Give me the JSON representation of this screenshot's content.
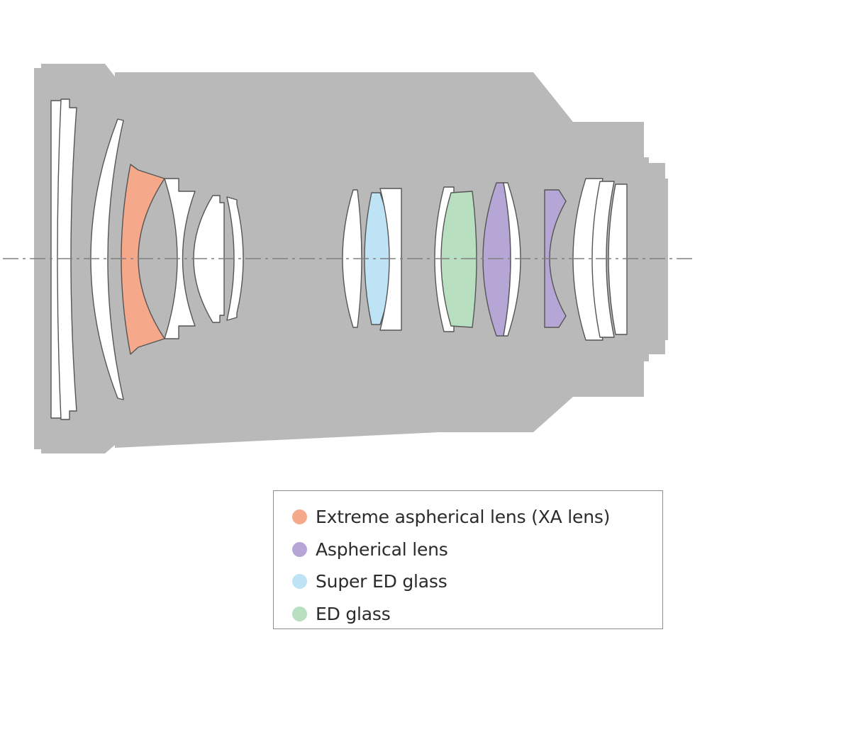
{
  "legend": {
    "items": [
      {
        "key": "xa",
        "label": "Extreme aspherical lens (XA lens)",
        "color": "#f5a88a"
      },
      {
        "key": "aspherical",
        "label": "Aspherical lens",
        "color": "#b6a6d6"
      },
      {
        "key": "super_ed",
        "label": "Super ED glass",
        "color": "#bde3f4"
      },
      {
        "key": "ed",
        "label": "ED glass",
        "color": "#b7dfc0"
      }
    ]
  },
  "colors": {
    "barrel": "#b9b9b9",
    "plain_element": "#ffffff",
    "element_outline": "#555555",
    "optical_axis": "#808080"
  },
  "elements": [
    {
      "name": "element-1",
      "glass": "plain"
    },
    {
      "name": "element-2",
      "glass": "plain"
    },
    {
      "name": "element-3",
      "glass": "plain"
    },
    {
      "name": "element-4",
      "glass": "xa"
    },
    {
      "name": "element-5",
      "glass": "plain"
    },
    {
      "name": "element-6",
      "glass": "plain"
    },
    {
      "name": "element-7",
      "glass": "plain"
    },
    {
      "name": "element-8",
      "glass": "plain"
    },
    {
      "name": "element-9",
      "glass": "super_ed"
    },
    {
      "name": "element-10",
      "glass": "plain"
    },
    {
      "name": "element-11",
      "glass": "plain"
    },
    {
      "name": "element-12",
      "glass": "ed"
    },
    {
      "name": "element-13",
      "glass": "aspherical"
    },
    {
      "name": "element-14",
      "glass": "plain"
    },
    {
      "name": "element-15",
      "glass": "aspherical"
    },
    {
      "name": "element-16",
      "glass": "plain"
    },
    {
      "name": "element-17",
      "glass": "plain"
    },
    {
      "name": "element-18",
      "glass": "plain"
    }
  ]
}
